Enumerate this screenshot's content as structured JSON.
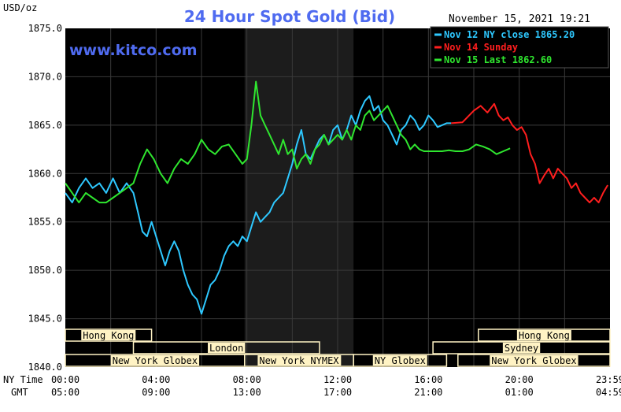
{
  "chart_data": {
    "type": "line",
    "title": "24 Hour Spot Gold (Bid)",
    "ylabel": "USD/oz",
    "datetime": "November 15, 2021 19:21",
    "watermark": "www.kitco.com",
    "ylim": [
      1840.0,
      1875.0
    ],
    "y_ticks": [
      "1875.0",
      "1870.0",
      "1865.0",
      "1860.0",
      "1855.0",
      "1850.0",
      "1845.0",
      "1840.0"
    ],
    "x_row_labels": {
      "ny": "NY Time",
      "gmt": "GMT"
    },
    "x_ticks_ny": [
      "00:00",
      "04:00",
      "08:00",
      "12:00",
      "16:00",
      "20:00",
      "23:59"
    ],
    "x_ticks_gmt": [
      "05:00",
      "09:00",
      "13:00",
      "17:00",
      "21:00",
      "01:00",
      "04:59"
    ],
    "x_unit": "NY time hour",
    "xlim": [
      0,
      24
    ],
    "grid": true,
    "legend_position": "top-right",
    "colors": {
      "background": "#000000",
      "grid": "#3a3a3a",
      "nymex_shade": "#1c1c1c",
      "nov12": "#2ec8ff",
      "nov14": "#ff1e1e",
      "nov15": "#2fe62f",
      "session_fill": "#fff3c4"
    },
    "series": [
      {
        "name": "Nov 12 NY close 1865.20",
        "color": "#2ec8ff",
        "x": [
          0,
          0.3,
          0.6,
          0.9,
          1.2,
          1.5,
          1.8,
          2.1,
          2.4,
          2.7,
          3.0,
          3.2,
          3.4,
          3.6,
          3.8,
          4.0,
          4.2,
          4.4,
          4.6,
          4.8,
          5.0,
          5.2,
          5.4,
          5.6,
          5.8,
          6.0,
          6.2,
          6.4,
          6.6,
          6.8,
          7.0,
          7.2,
          7.4,
          7.6,
          7.8,
          8.0,
          8.2,
          8.4,
          8.6,
          8.8,
          9.0,
          9.2,
          9.4,
          9.6,
          9.8,
          10.0,
          10.2,
          10.4,
          10.6,
          10.8,
          11.0,
          11.2,
          11.4,
          11.6,
          11.8,
          12.0,
          12.2,
          12.4,
          12.6,
          12.8,
          13.0,
          13.2,
          13.4,
          13.6,
          13.8,
          14.0,
          14.2,
          14.4,
          14.6,
          14.8,
          15.0,
          15.2,
          15.4,
          15.6,
          15.8,
          16.0,
          16.2,
          16.4,
          16.6,
          16.8,
          17.0
        ],
        "y": [
          1858.0,
          1857.0,
          1858.5,
          1859.5,
          1858.5,
          1859.0,
          1858.0,
          1859.5,
          1858.0,
          1859.0,
          1858.0,
          1856.0,
          1854.0,
          1853.5,
          1855.0,
          1853.5,
          1852.0,
          1850.5,
          1852.0,
          1853.0,
          1852.0,
          1850.0,
          1848.5,
          1847.5,
          1847.0,
          1845.5,
          1847.0,
          1848.5,
          1849.0,
          1850.0,
          1851.5,
          1852.5,
          1853.0,
          1852.5,
          1853.5,
          1853.0,
          1854.5,
          1856.0,
          1855.0,
          1855.5,
          1856.0,
          1857.0,
          1857.5,
          1858.0,
          1859.5,
          1861.0,
          1863.0,
          1864.5,
          1862.0,
          1861.5,
          1862.5,
          1863.5,
          1864.0,
          1863.0,
          1864.5,
          1865.0,
          1863.5,
          1864.5,
          1866.0,
          1865.0,
          1866.5,
          1867.5,
          1868.0,
          1866.5,
          1867.0,
          1865.5,
          1865.0,
          1864.0,
          1863.0,
          1864.5,
          1865.0,
          1866.0,
          1865.5,
          1864.5,
          1865.0,
          1866.0,
          1865.5,
          1864.8,
          1865.0,
          1865.2,
          1865.2
        ]
      },
      {
        "name": "Nov 14 Sunday",
        "color": "#ff1e1e",
        "x": [
          17.0,
          17.5,
          18.0,
          18.3,
          18.6,
          18.9,
          19.1,
          19.3,
          19.5,
          19.7,
          19.9,
          20.1,
          20.3,
          20.5,
          20.7,
          20.9,
          21.1,
          21.3,
          21.5,
          21.7,
          21.9,
          22.1,
          22.3,
          22.5,
          22.7,
          22.9,
          23.1,
          23.3,
          23.5,
          23.7,
          23.9
        ],
        "y": [
          1865.2,
          1865.3,
          1866.5,
          1867.0,
          1866.3,
          1867.2,
          1866.0,
          1865.5,
          1865.8,
          1865.0,
          1864.5,
          1864.8,
          1864.0,
          1862.0,
          1861.0,
          1859.0,
          1859.8,
          1860.5,
          1859.5,
          1860.5,
          1860.0,
          1859.5,
          1858.5,
          1859.0,
          1858.0,
          1857.5,
          1857.0,
          1857.5,
          1857.0,
          1858.0,
          1858.8
        ]
      },
      {
        "name": "Nov 15 Last 1862.60",
        "color": "#2fe62f",
        "x": [
          0,
          0.3,
          0.6,
          0.9,
          1.2,
          1.5,
          1.8,
          2.1,
          2.4,
          2.7,
          3.0,
          3.3,
          3.6,
          3.9,
          4.2,
          4.5,
          4.8,
          5.1,
          5.4,
          5.7,
          6.0,
          6.3,
          6.6,
          6.9,
          7.2,
          7.5,
          7.8,
          8.0,
          8.2,
          8.4,
          8.6,
          8.8,
          9.0,
          9.2,
          9.4,
          9.6,
          9.8,
          10.0,
          10.2,
          10.4,
          10.6,
          10.8,
          11.0,
          11.2,
          11.4,
          11.6,
          11.8,
          12.0,
          12.2,
          12.4,
          12.6,
          12.8,
          13.0,
          13.2,
          13.4,
          13.6,
          13.8,
          14.0,
          14.2,
          14.4,
          14.6,
          14.8,
          15.0,
          15.2,
          15.4,
          15.6,
          15.8,
          16.0,
          16.3,
          16.6,
          16.9,
          17.2,
          17.5,
          17.8,
          18.1,
          18.4,
          18.7,
          19.0,
          19.3,
          19.6
        ],
        "y": [
          1859.0,
          1858.0,
          1857.0,
          1858.0,
          1857.5,
          1857.0,
          1857.0,
          1857.5,
          1858.0,
          1858.5,
          1859.0,
          1861.0,
          1862.5,
          1861.5,
          1860.0,
          1859.0,
          1860.5,
          1861.5,
          1861.0,
          1862.0,
          1863.5,
          1862.5,
          1862.0,
          1862.8,
          1863.0,
          1862.0,
          1861.0,
          1861.5,
          1865.0,
          1869.5,
          1866.0,
          1865.0,
          1864.0,
          1863.0,
          1862.0,
          1863.5,
          1862.0,
          1862.5,
          1860.5,
          1861.5,
          1862.0,
          1861.0,
          1862.5,
          1863.0,
          1864.0,
          1863.0,
          1863.5,
          1864.0,
          1863.5,
          1864.5,
          1863.5,
          1865.0,
          1864.5,
          1866.0,
          1866.5,
          1865.5,
          1866.0,
          1866.5,
          1867.0,
          1866.0,
          1865.0,
          1864.0,
          1863.5,
          1862.5,
          1863.0,
          1862.5,
          1862.3,
          1862.3,
          1862.3,
          1862.3,
          1862.4,
          1862.3,
          1862.3,
          1862.5,
          1863.0,
          1862.8,
          1862.5,
          1862.0,
          1862.3,
          1862.6
        ]
      }
    ],
    "session_rows": [
      [
        {
          "label": "Hong Kong",
          "start": 0,
          "end": 3.8
        },
        {
          "label": "Hong Kong",
          "start": 18.2,
          "end": 24
        }
      ],
      [
        {
          "label": "London",
          "start": 3.0,
          "end": 11.2
        },
        {
          "label": "Sydney",
          "start": 16.2,
          "end": 24
        }
      ],
      [
        {
          "label": "New York Globex",
          "start": 0,
          "end": 7.9
        },
        {
          "label": "New York NYMEX",
          "start": 7.9,
          "end": 12.7
        },
        {
          "label": "NY Globex",
          "start": 12.7,
          "end": 16.8
        },
        {
          "label": "New York Globex",
          "start": 17.3,
          "end": 24
        }
      ]
    ],
    "shaded_region": {
      "start": 7.9,
      "end": 12.7
    }
  }
}
